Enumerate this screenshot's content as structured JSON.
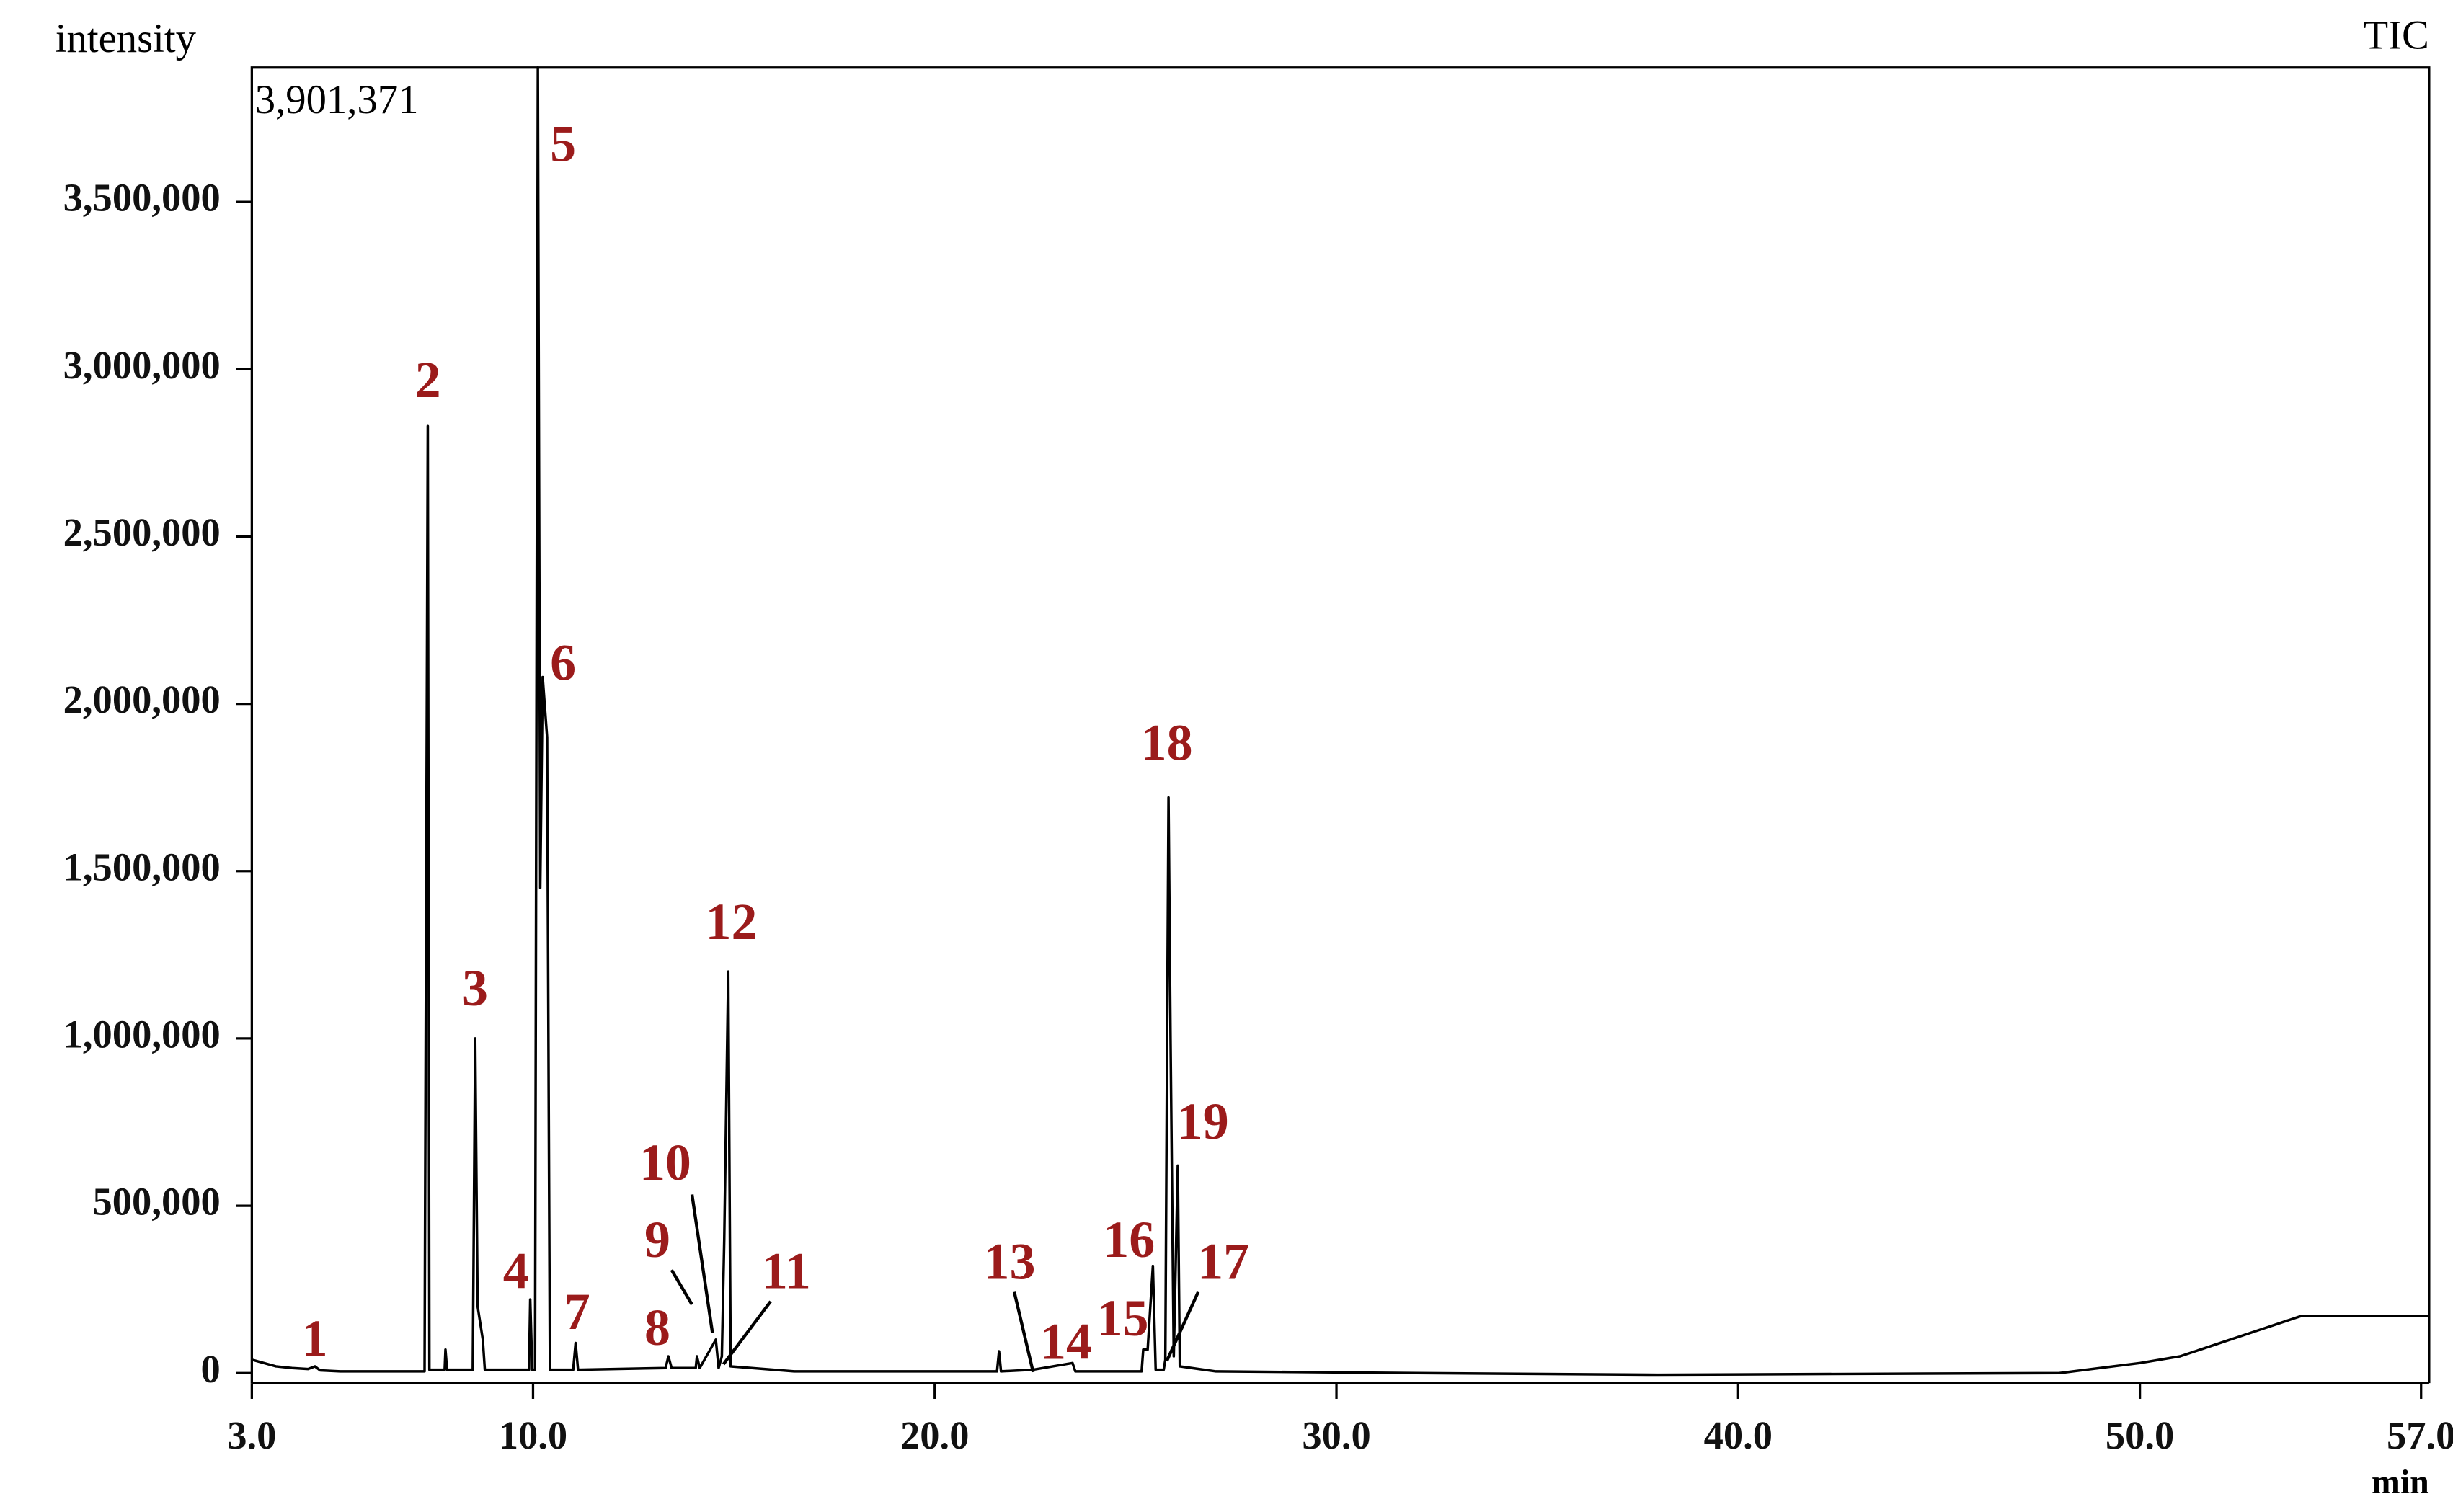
{
  "chart_data": {
    "type": "line",
    "title": "TIC",
    "y_label": "intensity",
    "x_label": "min",
    "max_label": "3,901,371",
    "xlim": [
      3,
      57.2
    ],
    "ylim": [
      -30000,
      3901371
    ],
    "xticks": [
      {
        "value": 3,
        "label": "3.0"
      },
      {
        "value": 10,
        "label": "10.0"
      },
      {
        "value": 20,
        "label": "20.0"
      },
      {
        "value": 30,
        "label": "30.0"
      },
      {
        "value": 40,
        "label": "40.0"
      },
      {
        "value": 50,
        "label": "50.0"
      },
      {
        "value": 57,
        "label": "57.0"
      }
    ],
    "yticks": [
      0,
      {
        "value": 500000,
        "label": "500,000"
      },
      {
        "value": 1000000,
        "label": "1,000,000"
      },
      {
        "value": 1500000,
        "label": "1,500,000"
      },
      {
        "value": 2000000,
        "label": "2,000,000"
      },
      {
        "value": 2500000,
        "label": "2,500,000"
      },
      {
        "value": 3000000,
        "label": "3,000,000"
      },
      {
        "value": 3500000,
        "label": "3,500,000"
      }
    ],
    "peak_labels": [
      "1",
      "2",
      "3",
      "4",
      "5",
      "6",
      "7",
      "8",
      "9",
      "10",
      "11",
      "12",
      "13",
      "14",
      "15",
      "16",
      "17",
      "18",
      "19"
    ],
    "series": [
      {
        "name": "TIC",
        "color": "#000000",
        "x": [
          3.0,
          3.3,
          3.6,
          4.0,
          4.4,
          4.57,
          4.7,
          5.2,
          7.3,
          7.38,
          7.42,
          7.8,
          7.82,
          7.86,
          8.5,
          8.56,
          8.62,
          8.75,
          8.8,
          9.9,
          9.93,
          9.98,
          10.05,
          10.12,
          10.18,
          10.24,
          10.35,
          10.42,
          11.0,
          11.06,
          11.12,
          13.3,
          13.37,
          13.45,
          14.05,
          14.08,
          14.15,
          14.55,
          14.62,
          14.7,
          14.76,
          14.86,
          14.92,
          16.5,
          21.55,
          21.6,
          21.65,
          22.45,
          23.43,
          23.5,
          25.15,
          25.19,
          25.3,
          25.43,
          25.5,
          25.7,
          25.74,
          25.78,
          25.82,
          25.87,
          25.95,
          26.05,
          26.1,
          27,
          32,
          38,
          48,
          50,
          51,
          52,
          53,
          54,
          57.2
        ],
        "values": [
          40000,
          30000,
          20000,
          15000,
          12000,
          20000,
          8000,
          5000,
          5000,
          2830000,
          10000,
          10000,
          70000,
          10000,
          10000,
          1000000,
          200000,
          100000,
          10000,
          10000,
          220000,
          10000,
          10000,
          3901371,
          1450000,
          2080000,
          1900000,
          10000,
          10000,
          90000,
          10000,
          15000,
          50000,
          15000,
          15000,
          50000,
          15000,
          100000,
          15000,
          50000,
          400000,
          1200000,
          20000,
          5000,
          5000,
          65000,
          5000,
          10000,
          30000,
          5000,
          5000,
          70000,
          70000,
          320000,
          10000,
          10000,
          40000,
          900000,
          1720000,
          1000000,
          50000,
          620000,
          20000,
          5000,
          0,
          -5000,
          0,
          30000,
          50000,
          90000,
          130000,
          170000,
          170000
        ]
      }
    ]
  }
}
